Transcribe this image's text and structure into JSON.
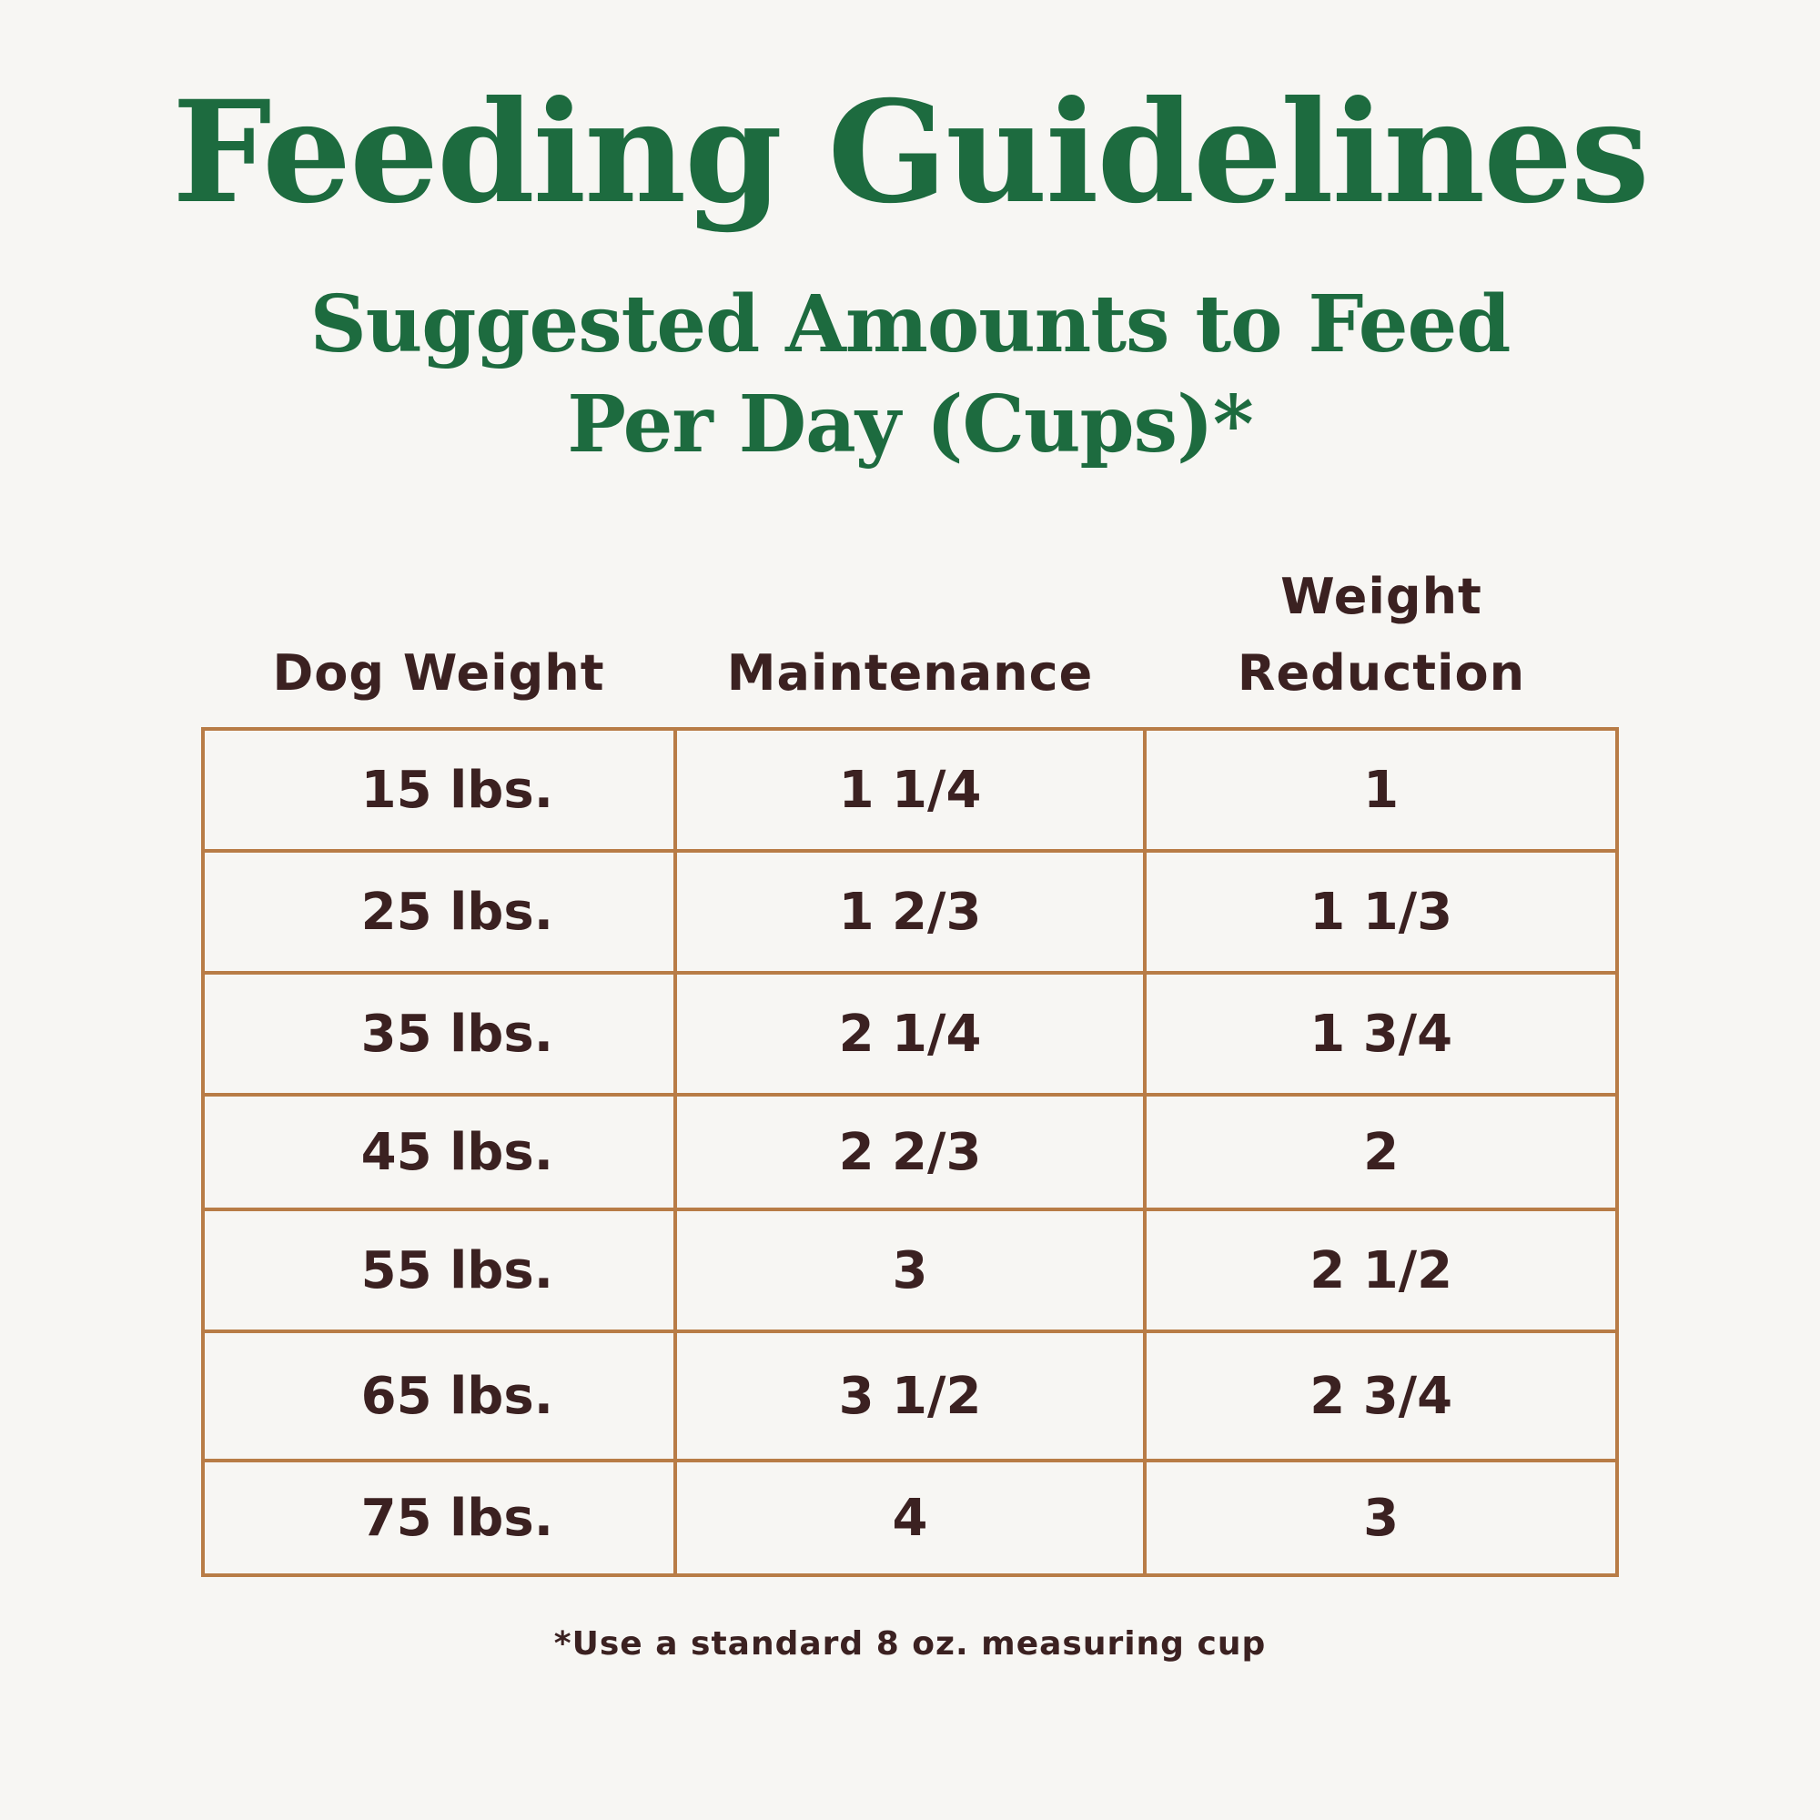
{
  "title": "Feeding Guidelines",
  "subtitle": {
    "line1": "Suggested Amounts to Feed",
    "line2": "Per Day (Cups)*"
  },
  "table": {
    "headers": {
      "dog_weight": "Dog Weight",
      "maintenance": "Maintenance",
      "weight_reduction_line1": "Weight",
      "weight_reduction_line2": "Reduction"
    },
    "rows": [
      {
        "dog_weight": "15 lbs.",
        "maintenance": "1 1/4",
        "weight_reduction": "1"
      },
      {
        "dog_weight": "25 lbs.",
        "maintenance": "1 2/3",
        "weight_reduction": "1 1/3"
      },
      {
        "dog_weight": "35 lbs.",
        "maintenance": "2 1/4",
        "weight_reduction": "1 3/4"
      },
      {
        "dog_weight": "45 lbs.",
        "maintenance": "2 2/3",
        "weight_reduction": "2"
      },
      {
        "dog_weight": "55 lbs.",
        "maintenance": "3",
        "weight_reduction": "2 1/2"
      },
      {
        "dog_weight": "65 lbs.",
        "maintenance": "3 1/2",
        "weight_reduction": "2 3/4"
      },
      {
        "dog_weight": "75 lbs.",
        "maintenance": "4",
        "weight_reduction": "3"
      }
    ]
  },
  "footnote": "*Use a standard 8 oz. measuring cup",
  "colors": {
    "title_green": "#1d6b3f",
    "text_brown": "#3b2121",
    "border_tan": "#b87c46",
    "background": "#f7f6f3"
  }
}
